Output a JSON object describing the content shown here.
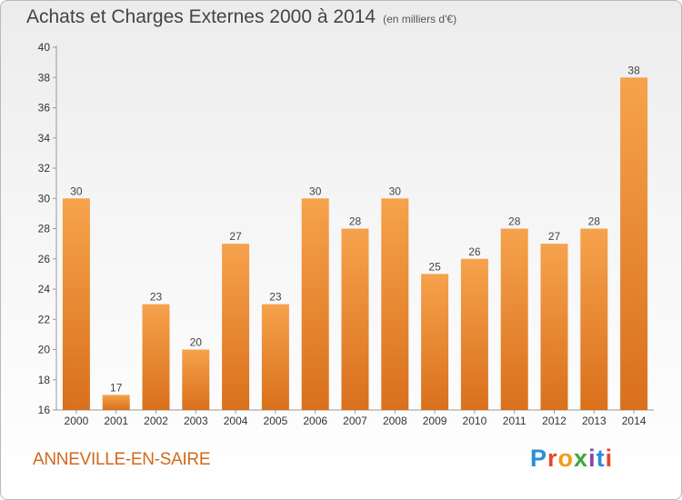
{
  "header": {
    "title": "Achats et Charges Externes 2000 à 2014",
    "subtitle": "(en milliers d'€)"
  },
  "footer": {
    "commune": "ANNEVILLE-EN-SAIRE",
    "logo_letters": [
      "P",
      "r",
      "o",
      "x",
      "i",
      "t",
      "i"
    ]
  },
  "colors": {
    "bar_light": "#f6a24c",
    "bar_dark": "#d9701c",
    "accent": "#d2691e"
  },
  "chart_data": {
    "type": "bar",
    "title": "Achats et Charges Externes 2000 à 2014",
    "subtitle": "(en milliers d'€)",
    "categories": [
      "2000",
      "2001",
      "2002",
      "2003",
      "2004",
      "2005",
      "2006",
      "2007",
      "2008",
      "2009",
      "2010",
      "2011",
      "2012",
      "2013",
      "2014"
    ],
    "values": [
      30,
      17,
      23,
      20,
      27,
      23,
      30,
      28,
      30,
      25,
      26,
      28,
      27,
      28,
      38
    ],
    "ylim": [
      16,
      40
    ],
    "yticks": [
      16,
      18,
      20,
      22,
      24,
      26,
      28,
      30,
      32,
      34,
      36,
      38,
      40
    ],
    "grid": false,
    "legend": "none"
  }
}
